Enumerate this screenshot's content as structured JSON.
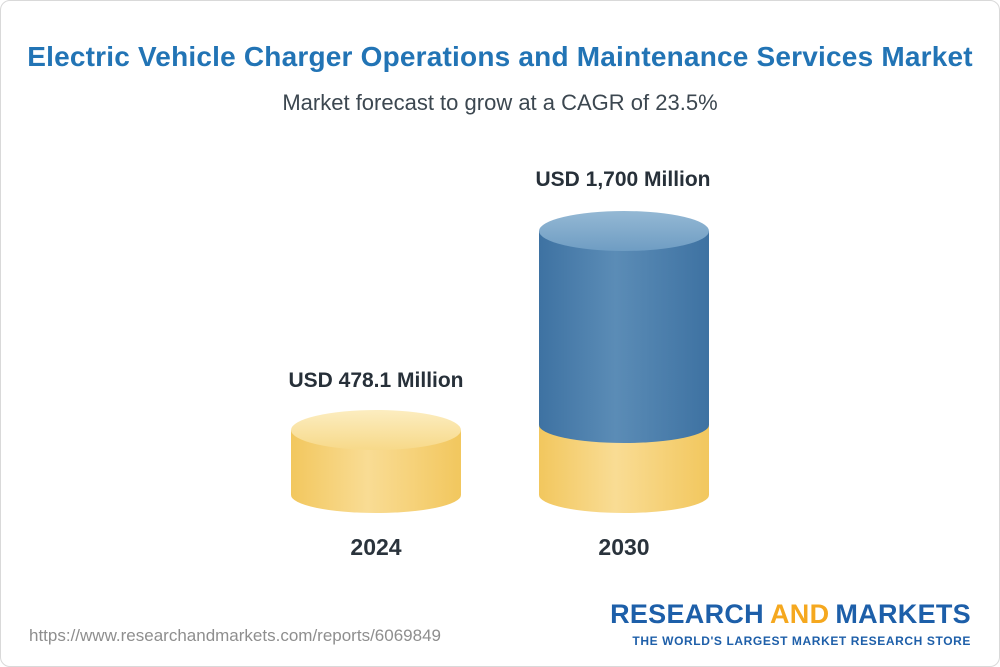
{
  "header": {
    "title": "Electric Vehicle Charger Operations and Maintenance Services Market",
    "subtitle": "Market forecast to grow at a CAGR of 23.5%"
  },
  "chart_data": {
    "type": "bar",
    "bar_style": "3d-cylinder",
    "categories": [
      "2024",
      "2030"
    ],
    "values": [
      478.1,
      1700
    ],
    "unit": "USD Million",
    "value_labels": [
      "USD 478.1 Million",
      "USD 1,700 Million"
    ],
    "title": "Electric Vehicle Charger Operations and Maintenance Services Market",
    "subtitle": "Market forecast to grow at a CAGR of 23.5%",
    "cagr_percent": 23.5,
    "xlabel": "",
    "ylabel": "",
    "legend": "none",
    "grid": false,
    "colors": {
      "bar_2024": "#f6ce6e",
      "bar_2030_segment": "#4478a8",
      "bar_2030_base_segment": "#f6ce6e",
      "title_text": "#2274b5",
      "label_text": "#273039"
    }
  },
  "bars": [
    {
      "year": "2024",
      "label": "USD 478.1 Million"
    },
    {
      "year": "2030",
      "label": "USD 1,700 Million"
    }
  ],
  "footer": {
    "url": "https://www.researchandmarkets.com/reports/6069849",
    "logo": {
      "part1": "RESEARCH",
      "part2": "AND",
      "part3": "MARKETS",
      "tagline": "THE WORLD'S LARGEST MARKET RESEARCH STORE"
    }
  }
}
